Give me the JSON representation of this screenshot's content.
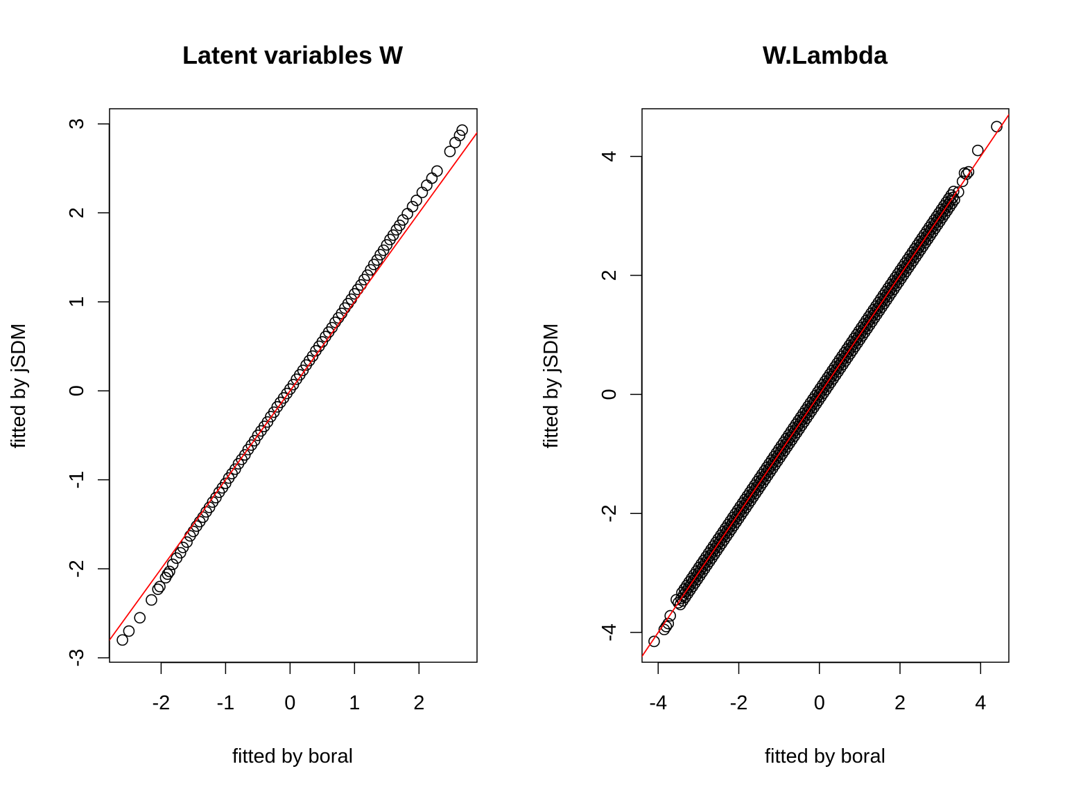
{
  "chart_data": [
    {
      "type": "scatter",
      "title": "Latent variables W",
      "xlabel": "fitted by boral",
      "ylabel": "fitted by jSDM",
      "xlim": [
        -2.8,
        2.9
      ],
      "ylim": [
        -3.05,
        3.17
      ],
      "xticks": [
        -2,
        -1,
        0,
        1,
        2
      ],
      "yticks": [
        -3,
        -2,
        -1,
        0,
        1,
        2,
        3
      ],
      "xtick_labels": [
        "-2",
        "-1",
        "0",
        "1",
        "2"
      ],
      "ytick_labels": [
        "-3",
        "-2",
        "-1",
        "0",
        "1",
        "2",
        "3"
      ],
      "reference_line": {
        "intercept": 0,
        "slope": 1,
        "color": "#ff0000"
      },
      "point_style": {
        "shape": "open-circle",
        "color": "#000000"
      },
      "series": [
        {
          "x": [
            -2.6,
            -2.5,
            -2.33,
            -2.15,
            -2.05,
            -2.02,
            -1.93,
            -1.9,
            -1.87,
            -1.82,
            -1.76,
            -1.7,
            -1.66,
            -1.6,
            -1.55,
            -1.5,
            -1.45,
            -1.4,
            -1.35,
            -1.3,
            -1.25,
            -1.2,
            -1.15,
            -1.1,
            -1.05,
            -1.0,
            -0.95,
            -0.9,
            -0.85,
            -0.8,
            -0.75,
            -0.7,
            -0.65,
            -0.6,
            -0.55,
            -0.5,
            -0.45,
            -0.4,
            -0.35,
            -0.3,
            -0.25,
            -0.2,
            -0.15,
            -0.1,
            -0.05,
            0.0,
            0.05,
            0.1,
            0.15,
            0.2,
            0.25,
            0.3,
            0.35,
            0.4,
            0.45,
            0.5,
            0.55,
            0.6,
            0.65,
            0.7,
            0.75,
            0.8,
            0.85,
            0.9,
            0.95,
            1.0,
            1.05,
            1.1,
            1.15,
            1.2,
            1.25,
            1.3,
            1.35,
            1.4,
            1.45,
            1.5,
            1.55,
            1.6,
            1.65,
            1.7,
            1.75,
            1.82,
            1.9,
            1.96,
            2.05,
            2.12,
            2.2,
            2.28,
            2.48,
            2.56,
            2.63,
            2.67
          ],
          "y": [
            -2.8,
            -2.7,
            -2.55,
            -2.35,
            -2.23,
            -2.2,
            -2.1,
            -2.06,
            -2.03,
            -1.95,
            -1.88,
            -1.82,
            -1.76,
            -1.7,
            -1.63,
            -1.58,
            -1.52,
            -1.47,
            -1.42,
            -1.36,
            -1.31,
            -1.25,
            -1.2,
            -1.14,
            -1.09,
            -1.04,
            -0.98,
            -0.93,
            -0.88,
            -0.82,
            -0.77,
            -0.72,
            -0.66,
            -0.61,
            -0.56,
            -0.5,
            -0.45,
            -0.4,
            -0.35,
            -0.29,
            -0.24,
            -0.18,
            -0.13,
            -0.08,
            -0.03,
            0.02,
            0.07,
            0.13,
            0.18,
            0.23,
            0.29,
            0.34,
            0.39,
            0.45,
            0.5,
            0.55,
            0.61,
            0.66,
            0.71,
            0.77,
            0.82,
            0.87,
            0.93,
            0.98,
            1.03,
            1.09,
            1.14,
            1.19,
            1.25,
            1.3,
            1.36,
            1.42,
            1.47,
            1.53,
            1.58,
            1.64,
            1.7,
            1.75,
            1.81,
            1.86,
            1.92,
            1.99,
            2.07,
            2.14,
            2.23,
            2.31,
            2.39,
            2.47,
            2.69,
            2.79,
            2.87,
            2.93
          ]
        }
      ]
    },
    {
      "type": "scatter",
      "title": "W.Lambda",
      "xlabel": "fitted by boral",
      "ylabel": "fitted by jSDM",
      "xlim": [
        -4.4,
        4.7
      ],
      "ylim": [
        -4.5,
        4.8
      ],
      "xticks": [
        -4,
        -2,
        0,
        2,
        4
      ],
      "yticks": [
        -4,
        -2,
        0,
        2,
        4
      ],
      "xtick_labels": [
        "-4",
        "-2",
        "0",
        "2",
        "4"
      ],
      "ytick_labels": [
        "-4",
        "-2",
        "0",
        "2",
        "4"
      ],
      "reference_line": {
        "intercept": 0,
        "slope": 1,
        "color": "#ff0000"
      },
      "point_style": {
        "shape": "open-circle",
        "color": "#000000"
      },
      "dense_band": {
        "x_from": -3.45,
        "x_to": 3.35,
        "slope": 1,
        "intercept": 0,
        "spread": 0.08
      },
      "series": [
        {
          "x": [
            -4.1,
            -3.85,
            -3.8,
            -3.75,
            -3.7,
            -3.55,
            -3.5,
            3.45,
            3.55,
            3.6,
            3.65,
            3.7,
            3.93,
            4.4
          ],
          "y": [
            -4.15,
            -3.95,
            -3.9,
            -3.85,
            -3.72,
            -3.45,
            -3.5,
            3.4,
            3.58,
            3.72,
            3.7,
            3.74,
            4.1,
            4.5
          ]
        }
      ]
    }
  ]
}
